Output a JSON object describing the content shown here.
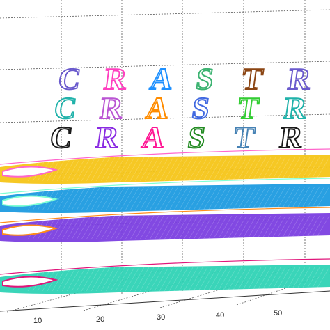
{
  "chart_data": {
    "type": "3d-surface-ribbons",
    "title": "",
    "xlabel": "",
    "ylabel": "",
    "x_ticks": [
      "10",
      "20",
      "30",
      "40",
      "50"
    ],
    "grid": true,
    "word": "CRASTR",
    "word_layers": [
      {
        "label": "CRASTR",
        "colors": [
          "#6a5acd",
          "#ff3fbf",
          "#1e90ff",
          "#3cb371",
          "#8b4513"
        ]
      },
      {
        "label": "CRASTR",
        "colors": [
          "#20b2aa",
          "#ba55d3",
          "#ff8c00",
          "#4169e1",
          "#32cd32"
        ]
      },
      {
        "label": "CRASTR",
        "colors": [
          "#1a1a1a",
          "#8a2be2",
          "#ff1493",
          "#228b22",
          "#4682b4"
        ]
      }
    ],
    "ribbons": [
      {
        "name": "",
        "color": "#f5c518",
        "accent": "#ff66cc",
        "level": 4
      },
      {
        "name": "",
        "color": "#1e9be0",
        "accent": "#7fffd4",
        "level": 3
      },
      {
        "name": "",
        "color": "#7b3fe0",
        "accent": "#ff8c1a",
        "level": 2
      },
      {
        "name": "",
        "color": "#2fd3b5",
        "accent": "#e0157a",
        "level": 1
      }
    ]
  }
}
